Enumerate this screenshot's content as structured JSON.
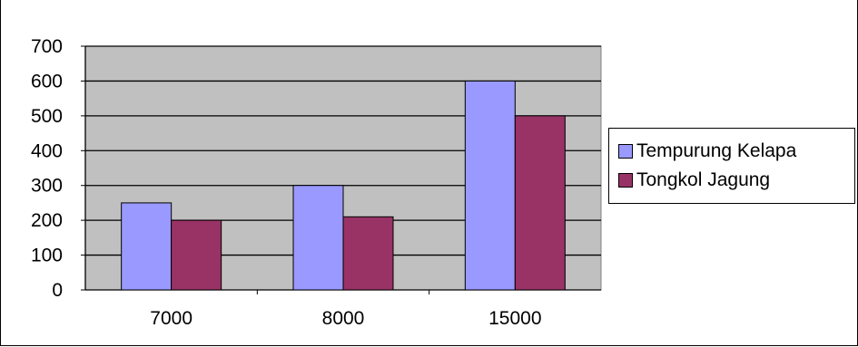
{
  "chart_data": {
    "type": "bar",
    "title": "",
    "xlabel": "",
    "ylabel": "",
    "categories": [
      "7000",
      "8000",
      "15000"
    ],
    "series": [
      {
        "name": "Tempurung Kelapa",
        "values": [
          250,
          300,
          600
        ],
        "color": "#9999ff"
      },
      {
        "name": "Tongkol Jagung",
        "values": [
          200,
          210,
          500
        ],
        "color": "#993366"
      }
    ],
    "ylim": [
      0,
      700
    ],
    "yticks": [
      "0",
      "100",
      "200",
      "300",
      "400",
      "500",
      "600",
      "700"
    ],
    "grid": true,
    "plot_background": "#c0c0c0",
    "legend_position": "right"
  }
}
